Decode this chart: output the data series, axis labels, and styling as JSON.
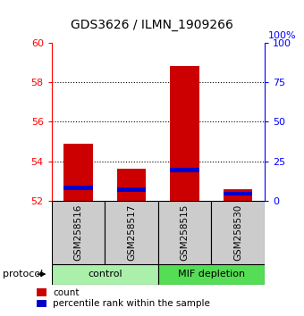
{
  "title": "GDS3626 / ILMN_1909266",
  "samples": [
    "GSM258516",
    "GSM258517",
    "GSM258515",
    "GSM258530"
  ],
  "groups": [
    {
      "label": "control",
      "indices": [
        0,
        1
      ],
      "color": "#aaf0aa"
    },
    {
      "label": "MIF depletion",
      "indices": [
        2,
        3
      ],
      "color": "#55dd55"
    }
  ],
  "y_min": 52,
  "y_max": 60,
  "y_ticks_left": [
    52,
    54,
    56,
    58,
    60
  ],
  "y_ticks_right": [
    0,
    25,
    50,
    75,
    100
  ],
  "bar_bottom": 52,
  "red_tops": [
    54.9,
    53.6,
    58.8,
    52.6
  ],
  "blue_bottoms": [
    52.55,
    52.45,
    53.45,
    52.25
  ],
  "blue_tops": [
    52.75,
    52.65,
    53.65,
    52.45
  ],
  "bar_width": 0.55,
  "red_color": "#cc0000",
  "blue_color": "#0000cc",
  "sample_box_color": "#cccccc",
  "title_fontsize": 10,
  "tick_fontsize": 8,
  "label_fontsize": 8,
  "legend_fontsize": 7.5
}
